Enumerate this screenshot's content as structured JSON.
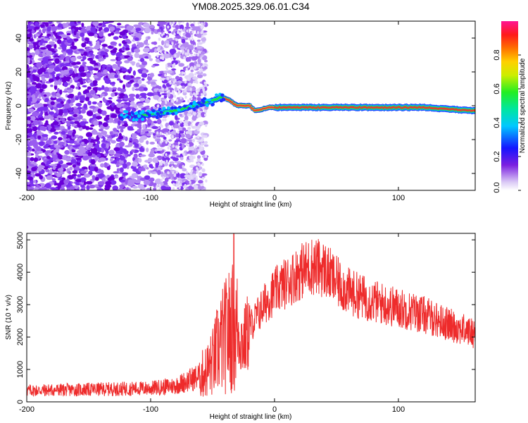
{
  "title": "YM08.2025.329.06.01.C34",
  "colors": {
    "snr_line": "#ee2b2b",
    "axes": "#000000",
    "background": "#ffffff"
  },
  "chart_data": [
    {
      "type": "heatmap",
      "xlabel": "Height of straight line (km)",
      "ylabel": "Frequency (Hz)",
      "xlim": [
        -200,
        162
      ],
      "ylim": [
        -50,
        50
      ],
      "xticks": [
        "-200",
        "-100",
        "0",
        "100"
      ],
      "yticks": [
        "-40",
        "-20",
        "0",
        "20",
        "40"
      ],
      "colorbar": {
        "label": "Normalized spectral amplitude",
        "range": [
          0,
          1
        ],
        "ticks": [
          "0.0",
          "0.2",
          "0.4",
          "0.6",
          "0.8"
        ]
      },
      "ridge": {
        "x": [
          -125,
          -110,
          -100,
          -90,
          -80,
          -70,
          -60,
          -50,
          -43,
          -38,
          -30,
          -20,
          -15,
          -10,
          -5,
          0,
          20,
          40,
          60,
          80,
          100,
          120,
          140,
          162
        ],
        "y": [
          -6,
          -6,
          -5,
          -4,
          -3,
          -1,
          1,
          3,
          5,
          4,
          0,
          0,
          -3,
          -2,
          -1,
          -1,
          -1,
          -1,
          -1,
          -1,
          -1,
          -1,
          -2,
          -3
        ]
      }
    },
    {
      "type": "line",
      "xlabel": "Height of straight line (km)",
      "ylabel": "SNR (10 * v/v)",
      "xlim": [
        -200,
        162
      ],
      "ylim": [
        0,
        5200
      ],
      "xticks": [
        "-200",
        "-100",
        "0",
        "100"
      ],
      "yticks": [
        "0",
        "1000",
        "2000",
        "3000",
        "4000",
        "5000"
      ],
      "series": [
        {
          "name": "SNR",
          "x": [
            -200,
            -150,
            -100,
            -80,
            -70,
            -60,
            -55,
            -50,
            -45,
            -40,
            -35,
            -33,
            -30,
            -25,
            -20,
            -15,
            -10,
            -5,
            0,
            10,
            20,
            30,
            40,
            50,
            60,
            80,
            100,
            120,
            140,
            162
          ],
          "y": [
            350,
            380,
            420,
            500,
            650,
            800,
            950,
            1200,
            1700,
            2000,
            2300,
            5200,
            2200,
            1800,
            2300,
            2600,
            2900,
            3200,
            3400,
            3700,
            4000,
            4200,
            4100,
            3700,
            3400,
            3100,
            2900,
            2700,
            2400,
            2100
          ]
        }
      ]
    }
  ]
}
